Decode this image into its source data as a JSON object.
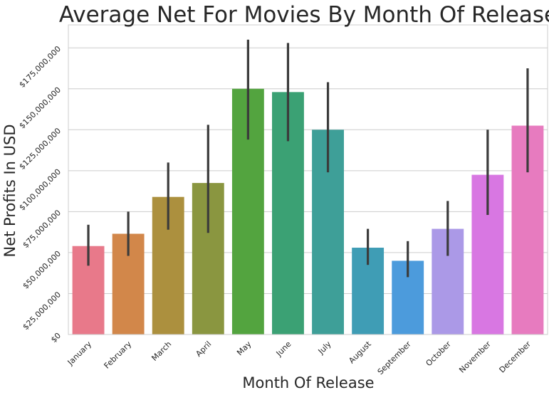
{
  "chart_data": {
    "type": "bar",
    "title": "Average Net For Movies By Month Of Release",
    "xlabel": "Month Of Release",
    "ylabel": "Net Profits In USD",
    "categories": [
      "January",
      "February",
      "March",
      "April",
      "May",
      "June",
      "July",
      "August",
      "September",
      "October",
      "November",
      "December"
    ],
    "values": [
      54000000,
      61500000,
      84000000,
      92500000,
      150000000,
      148000000,
      125000000,
      53000000,
      45000000,
      64500000,
      97500000,
      127500000
    ],
    "error_low": [
      42000000,
      48000000,
      64000000,
      62000000,
      119000000,
      118000000,
      99000000,
      42500000,
      35000000,
      48000000,
      73000000,
      99000000
    ],
    "error_high": [
      67000000,
      75000000,
      105000000,
      128000000,
      180000000,
      178000000,
      154000000,
      64500000,
      57000000,
      81500000,
      125000000,
      162500000
    ],
    "colors": [
      "#e8798a",
      "#d2874a",
      "#ac903e",
      "#8a9640",
      "#53a43f",
      "#3ba174",
      "#3e9f98",
      "#3f9db5",
      "#4c9bdc",
      "#ab99e7",
      "#d877e2",
      "#e77bbf"
    ],
    "yticks": [
      0,
      25000000,
      50000000,
      75000000,
      100000000,
      125000000,
      150000000,
      175000000
    ],
    "ytick_labels": [
      "$0",
      "$25,000,000",
      "$50,000,000",
      "$75,000,000",
      "$100,000,000",
      "$125,000,000",
      "$150,000,000",
      "$175,000,000"
    ],
    "ylim": [
      0,
      189000000
    ],
    "grid": true,
    "legend": "none",
    "error_color": "#3b3b3b",
    "grid_color": "#cccccc",
    "frame_color": "#cccccc"
  }
}
